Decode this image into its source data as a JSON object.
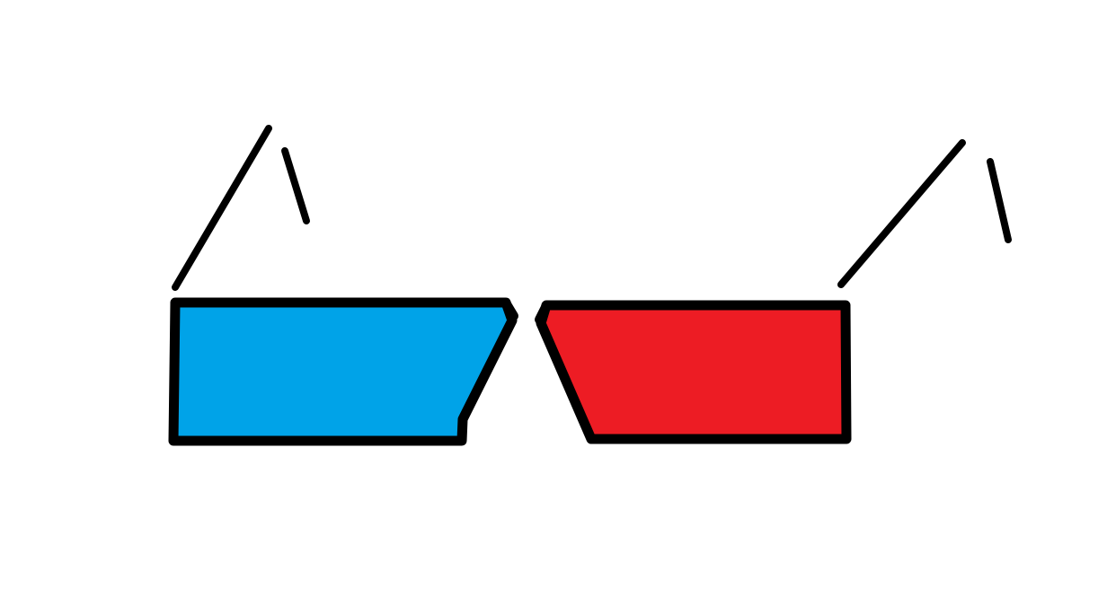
{
  "drawing": {
    "subject": "3d-glasses",
    "colors": {
      "background": "#ffffff",
      "outline": "#000000",
      "left_lens": "#00a3e8",
      "right_lens": "#ed1c24"
    },
    "icons": [
      "glasses-drawing",
      "left-lens",
      "right-lens",
      "left-temple-arm",
      "right-temple-arm"
    ]
  }
}
